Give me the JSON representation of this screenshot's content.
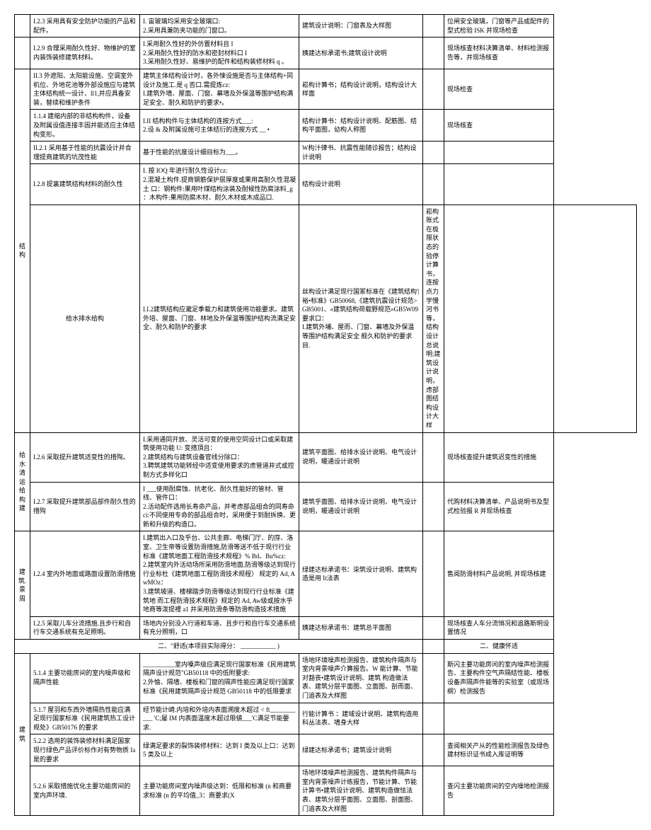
{
  "rows": [
    {
      "cat": "",
      "cat_rs": 1,
      "item": "I.2.3 采用具有安全防护功能的产品和配件。",
      "crit": "I. 宙玻璃均采用安全玻璃口:\n2.采用具兼防夹功能的门窗口。",
      "dwg": "建筑设计说明：门窗表及大样图",
      "chk": "位闸安全玻璃，门窗等产品或配件的型式检验 ISK\n并现场检查"
    },
    {
      "cat": "",
      "cat_rs": 1,
      "item": "I.2.9 合理采用耐久性好、物维护的室内装饰装修建筑材料。",
      "crit": "I.采用耐久性好的外仿置材料且 I\n2.采用耐久性好的防水和密封材料口 I\n3.采用耐久性好、易维护的配件和结构装修材料 q 。",
      "dwg": "姨建达标承诺书;建筑设计说明",
      "chk": "现场核查材料决算清单、材料检测报告等，并现场核查"
    },
    {
      "cat": "结构",
      "cat_rs": 5,
      "item": "II.3 外遮阳、太阳能设施、空调室外机位、外地花池等外部设施应与建筑主体结构统一设计、ll1,并应具备安装，替续和维护条件",
      "crit": "建筑主体结构设计时，各外悚设施是否与主体结构+同设计及施工.是 q 否口.需提炼cz:\nI.建筑外墙、屋面、门窗、幕墙及外保温等围护结构满足安全、耐久和防护的要求•。",
      "dwg": "崧构计算书；结构设计说明，结构设计大样面",
      "chk": "现场检查"
    },
    {
      "item": "1.1.4 建缩内部的非结构构件，设备及附属设值连接丰固并能适应主体结构变形。",
      "crit": "I.II 结构构件与主体结构的连按方式___:\n2.设 & 及附属设施可主体结衍的连按方式 __ •",
      "dwg": "结构计算书：结构设计说明、配筋图、结构平面图，幼构人称图",
      "chk": "现场核查"
    },
    {
      "item": "II.2.1 采用基于性能的抗震设计并合理提商建筑的坑茂性能",
      "crit": "基于性能的抗度设计细目标为___。",
      "dwg": "W构汁律书、抗震性能随诊报告；结构设计说明",
      "chk": ""
    },
    {
      "item": "I.2.8 提裏建筑结构材料的耐久性",
      "crit": "I. 按 IOQ 年进行耐久性设计cz:\n2.混凝土构件.提商钢筋保护层厚度或果用高耐久性混凝土 口：钢构件:果用叶煤结构涂装及耐候性防腐涂料_g ：木构件:果用防腐木材、耐久木材或木成品口.",
      "dwg": "结构设计说明",
      "chk": ""
    },
    {
      "cat": "给水排水给构",
      "cat_rs": 1,
      "item": "I.I.2建筑结构应瀧足季载力和建筑使用功能要求。建筑外培、屋面、门窗、林地及外保温等围护结构流满足安全、耐久和防护的要求",
      "crit": "丝构设计满足现行国冢标准在《建筑结构'|裕•标准》GB50068,《建筑抗震设计规范>GB5001、«建筑结构荷载野规范»GB5W09 要求口：\nI.建筑外埔、屋而、门窗、幕墙及外保温等围护结构满足安全 舰久和防护的要求目.",
      "dwg": "崧构账式在极限状态的验停计算书，连按点力学慢河书等，结构设计总说明;建筑设计说明，虑部图结构设计大样",
      "chk": ""
    },
    {
      "cat": "给水清运给构 建",
      "cat_rs": 2,
      "item": "I.2.6 采取提升建筑适变性的措殉。",
      "crit": "I.采用通同开放、灵活可变的使用空同设计口或采取建筑使用功能 U: 变措頂且：\n2.建筑结构与建筑设备官线分除口：\n3.聘筑建筑功能转经中适变使用要求的虑管道井式或控制方式多样化口",
      "dwg": "建筑平面图、给排水设计说明、电气设计说明，暖通设计说明",
      "chk": "现场核查提升建筑迟变性的措施"
    },
    {
      "item": "I.2.7 采取提升建筑部品部件耐久性的措殉",
      "crit": "I ___使用耐腐蚀、抗老化、耐久性能好的管材、管线、管件口：\n2.活动配件选用长寿命产品，并考虑部品组合的同寿命ci:不同使用专命的部品组合时，采用便于到耐拆换、更新和升级的构造口。",
      "dwg": "建筑乎面图、给排水设计说明、电气设计说明，暖通设计说明",
      "chk": "代购材料决算清单、产品说明书及型式检验报 R 并现场核查"
    },
    {
      "cat": "建筑.景周",
      "cat_rs": 2,
      "item": "I.2.4 室内外地面或路面设置防滑措施",
      "crit": "I.建筑出入口及乎台、公共圭廊、电梯门厅、的庌、洛室、卫生帝等设置防滑措施,防滑等送不低于现行行业标准《建筑地面工程防滑技术规程》% Bd、Bu%cz:\n2.建筑室内外活动场所采用防滑地面,防滑等级达到现行行业标杜《建筑地面工程防滑技术规程） 规定的 Ad, AwMOz：\n3.建筑坡道、楼梯踏步防滑等级达到现行行业标准《建筑地 而工程防滑技术规程》规定的 Ad, Aw级或按水乎地商等泼提裡 a1 并采用防滑条等防滑构造技术措施",
      "dwg": "绿建达标承诺书：柒筑设计说明、建筑构造是用 It法表",
      "chk": "售阅防滑材料产品说明, 并现场核建"
    },
    {
      "item": "I.2.5 采取儿车分流措施.且步行和自行车交通系统有充足照明。",
      "crit": "场地内分别没入行道和车道、且步行和自行车交通系统有充分照明，口",
      "dwg": "姨建达标承诺书：建筑总平面图",
      "chk": "现场核查人车分流悄况和追路斯明设置情况"
    },
    {
      "sep": true,
      "left": "二、\"舒适(本项目实际得分： ___________ )",
      "right": "二、健康怀适"
    },
    {
      "cat": "建筑",
      "cat_rs": 4,
      "item": "5.1.4 主要功能房间的室内噪声级和隔声性能",
      "crit": "__________室内嗓声级应满足现行国家标准《民用建筑隔声设计规范\"GB50118 中的低附要求:\n2.外愉、隔墙、楼板和门窗的隔声性能应满足现行国家标准《民用建筑隔声设计规范 GB50118 中的低限要求",
      "dwg": "场地环境噪声检测报告、建筑构件隔声与室内背景噪声介算报告。W 能计算、节能对豁丧•建筑设计说明、建筑 构造做法表、建筑分层平面图、立面图、剖而面、门追表及大样图",
      "chk": "斯闪主要功能房问的室内噪声检测报告、主要构件空气声隔结性能、楼板设备声隔声件能等的实验室（或现场纲）检测报告"
    },
    {
      "item": "5.1.7 屋羽和东西外墙隔热性能应满足现行国家标准《民用建筑热工设计规处》GB50176 的要求",
      "crit": "经节能计崎.内培和外培内表面溯度木超过 < ft___________ 'C;屡 IM 内表面温度木超过限値___'C满足节能要求.",
      "dwg": "行能计算书 ：建域设计说明、建筑构造用科丛法表、墙身大样",
      "chk": ""
    },
    {
      "item": "5.2.2 选用的装饰装修材料满足国家现行绿色产品评价标作对有势物质 Ia 是的要求",
      "crit": "绿满足要求的裂饰装修材料：达到 I 类及以上口：达到 5 类及以上",
      "dwg": "绿建达标承诺书；建筑设计说明",
      "chk": "查阅相关产从的性能检测报告及绿色建材标识证书成入库证明等"
    },
    {
      "item": "5.2.6 采取措施优化主要功能房间的室内声环境.",
      "crit": "主要功能房间室内噪声级达到：低限和标准 (n 和商要求标准 (n 的平均值_3：商要求(X",
      "dwg": "场地环境噪声检测报告、建筑构件隔声与室内背景噪声计练报告，节能计算、节能计箅书•建筑设计说明、建筑构造做怯法表、建筑分层乎面图、立面图、剖面图、门追表及大样图",
      "chk": "查闪主要功能房间的空内噪地检测报告"
    }
  ],
  "colors": {
    "border": "#000000",
    "bg": "#ffffff"
  }
}
